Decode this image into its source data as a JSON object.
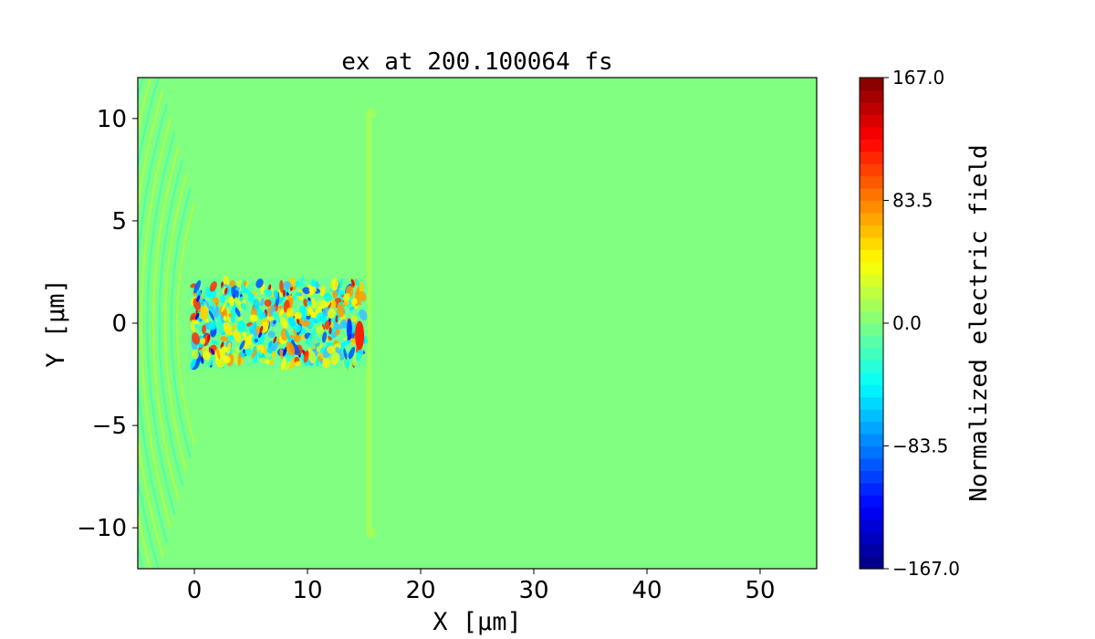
{
  "chart_data": {
    "type": "heatmap",
    "title": "ex at 200.100064 fs",
    "xlabel": "X [μm]",
    "ylabel": "Y [μm]",
    "xlim": [
      -5,
      55
    ],
    "ylim": [
      -12,
      12
    ],
    "x_ticks": [
      0,
      10,
      20,
      30,
      40,
      50
    ],
    "x_tick_labels": [
      "0",
      "10",
      "20",
      "30",
      "40",
      "50"
    ],
    "y_ticks": [
      10,
      5,
      0,
      -5,
      -10
    ],
    "y_tick_labels": [
      "10",
      "5",
      "0",
      "−5",
      "−10"
    ],
    "colormap": "jet",
    "colorbar": {
      "label": "Normalized electric field",
      "vmin": -167.0,
      "vmax": 167.0,
      "ticks": [
        167.0,
        83.5,
        0.0,
        -83.5,
        -167.0
      ],
      "tick_labels": [
        "167.0",
        "83.5",
        "0.0",
        "−83.5",
        "−167.0"
      ]
    },
    "background_value": 0.0,
    "features": [
      {
        "name": "wave-train",
        "x_range": [
          -0.5,
          15.3
        ],
        "y_range": [
          -2.2,
          2.2
        ]
      },
      {
        "name": "shock-front",
        "x": 15.6,
        "y_range": [
          -10.5,
          10.5
        ]
      },
      {
        "name": "left-ripples",
        "x_range": [
          -5,
          0
        ],
        "y_range": [
          -11,
          11
        ]
      }
    ]
  }
}
